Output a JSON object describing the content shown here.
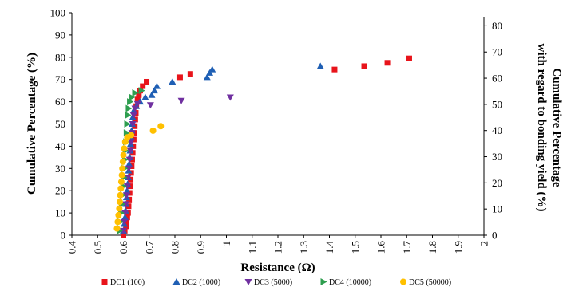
{
  "chart_data": {
    "type": "scatter",
    "xlabel": "Resistance  (Ω)",
    "ylabel": "Cumulative Percentage (%)",
    "ylabel_right_lines": [
      "Cumulative Percentage",
      "with regard to bonding yield  (%)"
    ],
    "xlim": [
      0.4,
      2.0
    ],
    "ylim": [
      0,
      100
    ],
    "ylim_right": [
      0,
      85
    ],
    "x_ticks": [
      "0.4",
      "0.5",
      "0.6",
      "0.7",
      "0.8",
      "0.9",
      "1",
      "1.1",
      "1.2",
      "1.3",
      "1.4",
      "1.5",
      "1.6",
      "1.7",
      "1.8",
      "1.9",
      "2"
    ],
    "y_ticks": [
      "0",
      "10",
      "20",
      "30",
      "40",
      "50",
      "60",
      "70",
      "80",
      "90",
      "100"
    ],
    "y_ticks_right": [
      "0",
      "10",
      "20",
      "30",
      "40",
      "50",
      "60",
      "70",
      "80"
    ],
    "grid": false,
    "legend_position": "bottom",
    "series": [
      {
        "name": "DC1 (100)",
        "color": "#e8141b",
        "marker": "square",
        "points": [
          [
            0.6,
            0
          ],
          [
            0.605,
            2
          ],
          [
            0.61,
            4
          ],
          [
            0.612,
            6
          ],
          [
            0.615,
            8
          ],
          [
            0.618,
            10
          ],
          [
            0.62,
            13
          ],
          [
            0.622,
            16
          ],
          [
            0.624,
            19
          ],
          [
            0.626,
            22
          ],
          [
            0.628,
            25
          ],
          [
            0.63,
            28
          ],
          [
            0.632,
            31
          ],
          [
            0.634,
            34
          ],
          [
            0.636,
            37
          ],
          [
            0.638,
            40
          ],
          [
            0.64,
            43
          ],
          [
            0.642,
            46
          ],
          [
            0.644,
            49
          ],
          [
            0.646,
            52
          ],
          [
            0.648,
            55
          ],
          [
            0.65,
            58
          ],
          [
            0.655,
            61
          ],
          [
            0.66,
            63
          ],
          [
            0.665,
            65
          ],
          [
            0.675,
            67
          ],
          [
            0.69,
            69
          ],
          [
            0.82,
            71
          ],
          [
            0.86,
            72.5
          ],
          [
            1.42,
            74.5
          ],
          [
            1.535,
            76
          ],
          [
            1.625,
            77.5
          ],
          [
            1.71,
            79.5
          ]
        ]
      },
      {
        "name": "DC2 (1000)",
        "color": "#1f5fb4",
        "marker": "triangle-up",
        "points": [
          [
            0.6,
            2
          ],
          [
            0.603,
            5
          ],
          [
            0.606,
            8
          ],
          [
            0.608,
            11
          ],
          [
            0.61,
            14
          ],
          [
            0.612,
            17
          ],
          [
            0.614,
            20
          ],
          [
            0.616,
            23
          ],
          [
            0.618,
            26
          ],
          [
            0.62,
            29
          ],
          [
            0.622,
            32
          ],
          [
            0.624,
            35
          ],
          [
            0.626,
            38
          ],
          [
            0.628,
            41
          ],
          [
            0.63,
            44
          ],
          [
            0.632,
            47
          ],
          [
            0.634,
            50
          ],
          [
            0.636,
            53
          ],
          [
            0.64,
            56
          ],
          [
            0.65,
            58
          ],
          [
            0.665,
            60
          ],
          [
            0.685,
            62
          ],
          [
            0.71,
            63
          ],
          [
            0.72,
            65
          ],
          [
            0.73,
            67
          ],
          [
            0.79,
            69
          ],
          [
            0.925,
            71
          ],
          [
            0.935,
            73
          ],
          [
            0.945,
            74.5
          ],
          [
            1.365,
            76
          ]
        ]
      },
      {
        "name": "DC3 (5000)",
        "color": "#7030a0",
        "marker": "triangle-down",
        "points": [
          [
            0.6,
            2
          ],
          [
            0.603,
            6
          ],
          [
            0.606,
            10
          ],
          [
            0.609,
            14
          ],
          [
            0.612,
            18
          ],
          [
            0.615,
            22
          ],
          [
            0.618,
            26
          ],
          [
            0.621,
            30
          ],
          [
            0.624,
            34
          ],
          [
            0.627,
            38
          ],
          [
            0.63,
            42
          ],
          [
            0.633,
            46
          ],
          [
            0.636,
            50
          ],
          [
            0.64,
            54
          ],
          [
            0.645,
            57
          ],
          [
            0.655,
            59
          ],
          [
            0.705,
            58.5
          ],
          [
            0.825,
            60.5
          ],
          [
            1.015,
            62
          ]
        ]
      },
      {
        "name": "DC4 (10000)",
        "color": "#2e9e4f",
        "marker": "triangle-right",
        "points": [
          [
            0.585,
            2
          ],
          [
            0.588,
            6
          ],
          [
            0.591,
            10
          ],
          [
            0.594,
            14
          ],
          [
            0.597,
            18
          ],
          [
            0.6,
            22
          ],
          [
            0.602,
            26
          ],
          [
            0.604,
            30
          ],
          [
            0.606,
            34
          ],
          [
            0.608,
            38
          ],
          [
            0.61,
            42
          ],
          [
            0.612,
            46
          ],
          [
            0.614,
            50
          ],
          [
            0.617,
            54
          ],
          [
            0.62,
            57
          ],
          [
            0.625,
            60
          ],
          [
            0.632,
            62
          ],
          [
            0.645,
            64
          ],
          [
            0.67,
            65
          ]
        ]
      },
      {
        "name": "DC5 (50000)",
        "color": "#ffc000",
        "marker": "circle",
        "points": [
          [
            0.575,
            3
          ],
          [
            0.578,
            6
          ],
          [
            0.581,
            9
          ],
          [
            0.584,
            12
          ],
          [
            0.586,
            15
          ],
          [
            0.588,
            18
          ],
          [
            0.59,
            21
          ],
          [
            0.592,
            24
          ],
          [
            0.594,
            27
          ],
          [
            0.596,
            30
          ],
          [
            0.598,
            33
          ],
          [
            0.6,
            36
          ],
          [
            0.603,
            39
          ],
          [
            0.607,
            42
          ],
          [
            0.615,
            44
          ],
          [
            0.63,
            45
          ],
          [
            0.715,
            47
          ],
          [
            0.745,
            49
          ]
        ]
      }
    ]
  }
}
